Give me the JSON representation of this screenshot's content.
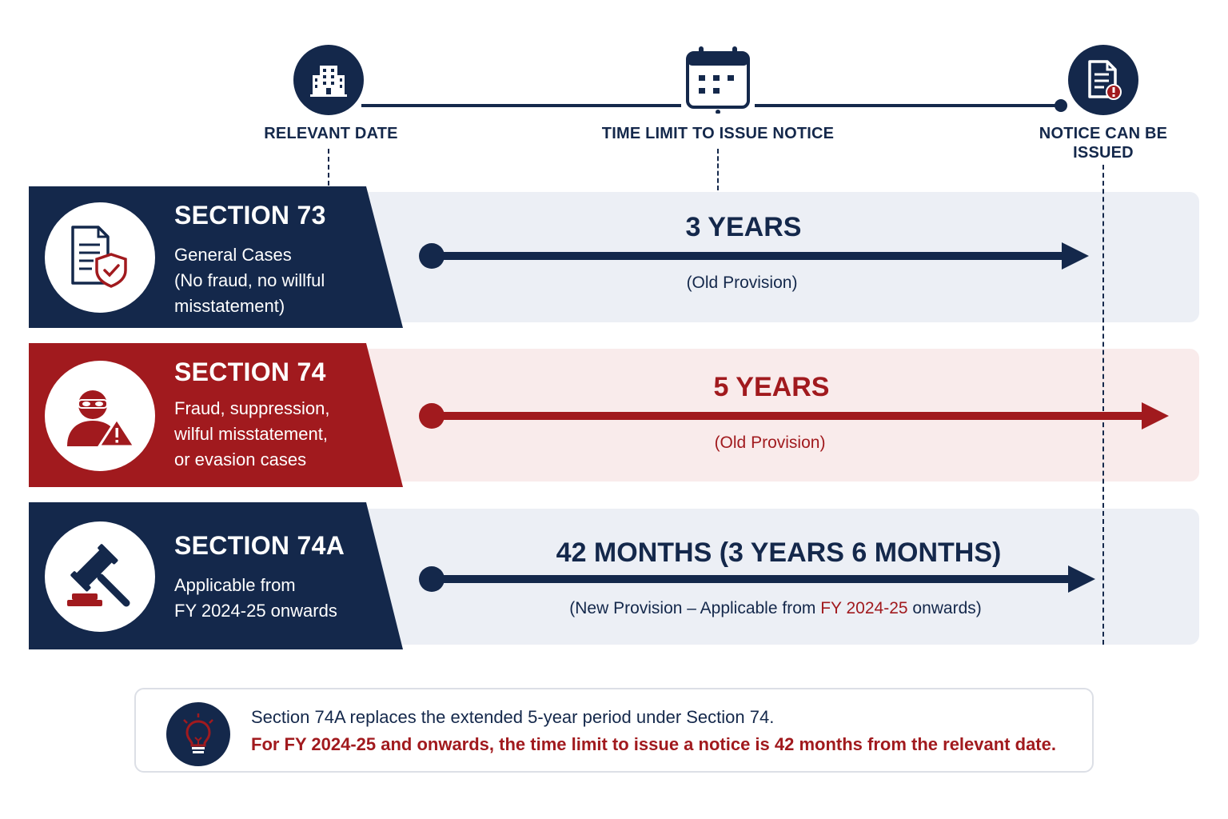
{
  "timeline": {
    "points": [
      {
        "label": "RELEVANT DATE",
        "icon": "building-icon"
      },
      {
        "label": "TIME LIMIT TO ISSUE NOTICE",
        "icon": "calendar-icon"
      },
      {
        "label_line1": "NOTICE CAN BE",
        "label_line2": "ISSUED",
        "icon": "document-alert-icon"
      }
    ]
  },
  "sections": [
    {
      "title": "SECTION 73",
      "desc": [
        "General Cases",
        "(No fraud, no willful",
        "misstatement)"
      ],
      "icon": "document-shield-icon",
      "duration": "3 YEARS",
      "provision": "(Old Provision)",
      "color": "#14284b"
    },
    {
      "title": "SECTION 74",
      "desc": [
        "Fraud, suppression,",
        "wilful misstatement,",
        "or evasion cases"
      ],
      "icon": "masked-person-warning-icon",
      "duration": "5 YEARS",
      "provision": "(Old Provision)",
      "color": "#a11a1e"
    },
    {
      "title": "SECTION 74A",
      "desc": [
        "Applicable from",
        "FY 2024-25 onwards"
      ],
      "icon": "gavel-icon",
      "duration": "42 MONTHS (3 YEARS 6 MONTHS)",
      "provision_before": "(New Provision – Applicable from ",
      "provision_highlight": "FY 2024-25",
      "provision_after": " onwards)",
      "color": "#14284b"
    }
  ],
  "note": {
    "icon": "lightbulb-icon",
    "line1": "Section 74A replaces the extended 5-year period under Section 74.",
    "line2": "For FY 2024-25 and onwards, the time limit to issue a notice is 42 months from the relevant date."
  },
  "colors": {
    "navy": "#14284b",
    "red": "#a11a1e",
    "navy_tint": "#eceff5",
    "red_tint": "#f9ebeb"
  }
}
